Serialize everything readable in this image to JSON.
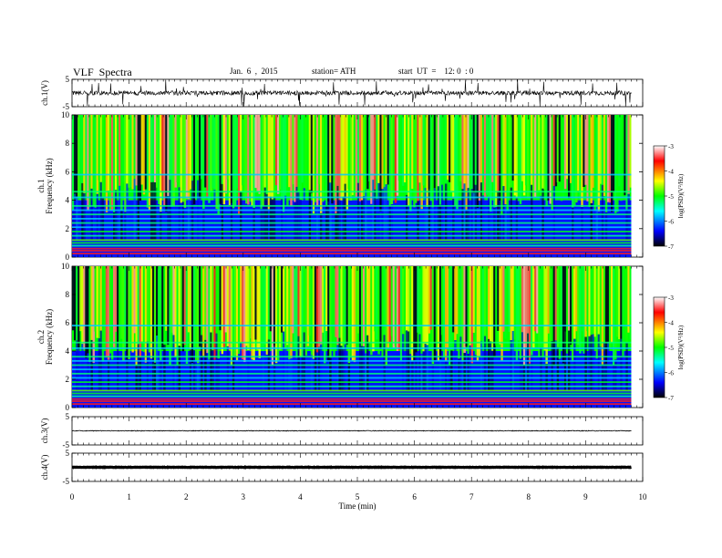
{
  "header": {
    "title": "VLF  Spectra",
    "date": "Jan.  6  ,  2015",
    "station": "station= ATH",
    "start": "start  UT  =    12: 0  : 0"
  },
  "colors": {
    "trace": "#000000",
    "colormap": [
      "#000000",
      "#0000ff",
      "#00ffff",
      "#00ff00",
      "#ffff00",
      "#ff0000",
      "#ffffff"
    ]
  },
  "chart_data": [
    {
      "type": "line",
      "panel": "ch1-waveform",
      "ylabel": "ch.1(V)",
      "ylim": [
        -5,
        5
      ],
      "yticks": [
        "5",
        "-5"
      ],
      "xlim": [
        0,
        10
      ],
      "x_extent": [
        0,
        9.8
      ],
      "signal": "noisy waveform around 0 V with frequent impulsive spikes (sferics)"
    },
    {
      "type": "heatmap",
      "panel": "ch1-spectrogram",
      "ylabel": "ch.1\nFrequency  (kHz)",
      "ylim": [
        0,
        10
      ],
      "yticks": [
        "0",
        "2",
        "4",
        "6",
        "8",
        "10"
      ],
      "xlim": [
        0,
        10
      ],
      "x_extent": [
        0,
        9.8
      ],
      "colorbar": {
        "label": "log(PSD)(V²/Hz)",
        "range": [
          -7,
          -3
        ],
        "ticks": [
          "-3",
          "-4",
          "-5",
          "-6",
          "-7"
        ]
      }
    },
    {
      "type": "heatmap",
      "panel": "ch2-spectrogram",
      "ylabel": "ch.2\nFrequency  (kHz)",
      "ylim": [
        0,
        10
      ],
      "yticks": [
        "0",
        "2",
        "4",
        "6",
        "8",
        "10"
      ],
      "xlim": [
        0,
        10
      ],
      "x_extent": [
        0,
        9.8
      ],
      "colorbar": {
        "label": "log(PSD)(V²/Hz)",
        "range": [
          -7,
          -3
        ],
        "ticks": [
          "-3",
          "-4",
          "-5",
          "-6",
          "-7"
        ]
      }
    },
    {
      "type": "line",
      "panel": "ch3-waveform",
      "ylabel": "ch.3(V)",
      "ylim": [
        -5,
        5
      ],
      "yticks": [
        "5",
        "-5"
      ],
      "xlim": [
        0,
        10
      ],
      "x_extent": [
        0,
        9.8
      ],
      "signal": "nearly flat trace at about 0 V"
    },
    {
      "type": "line",
      "panel": "ch4-waveform",
      "ylabel": "ch.4(V)",
      "ylim": [
        -5,
        5
      ],
      "yticks": [
        "5",
        "-5"
      ],
      "xlim": [
        0,
        10
      ],
      "x_extent": [
        0,
        9.8
      ],
      "signal": "thick flat trace at about 0 V"
    }
  ],
  "x_axis": {
    "label": "Time  (min)",
    "ticks": [
      "0",
      "1",
      "2",
      "3",
      "4",
      "5",
      "6",
      "7",
      "8",
      "9",
      "10"
    ]
  }
}
